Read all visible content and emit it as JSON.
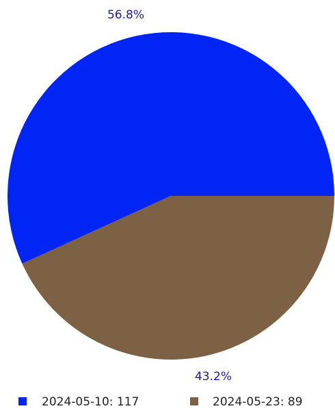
{
  "chart_data": {
    "type": "pie",
    "slices": [
      {
        "label": "2024-05-10",
        "value": 117,
        "percent_label": "56.8%",
        "legend_text": "2024-05-10: 117",
        "color": "#0025f5"
      },
      {
        "label": "2024-05-23",
        "value": 89,
        "percent_label": "43.2%",
        "legend_text": "2024-05-23: 89",
        "color": "#7c6144"
      }
    ],
    "start_angle_deg": 0,
    "direction": "counterclockwise",
    "legend_position": "bottom",
    "label_color": "#1a1aa6"
  }
}
